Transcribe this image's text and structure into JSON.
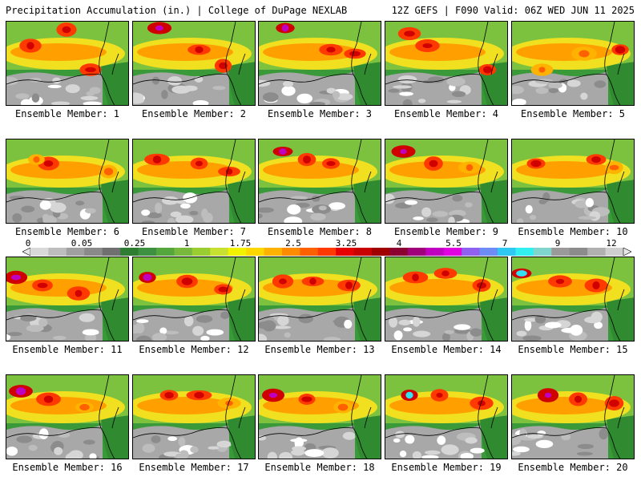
{
  "header": {
    "left": "Precipitation Accumulation (in.) | College of DuPage NEXLAB",
    "right": "12Z GEFS | F090 Valid: 06Z WED JUN 11 2025"
  },
  "colorbar": {
    "labels": [
      "0",
      "0.05",
      "0.25",
      "1",
      "1.75",
      "2.5",
      "3.25",
      "4",
      "5.5",
      "7",
      "9",
      "12"
    ],
    "colors": [
      "#d9d9d9",
      "#bdbdbd",
      "#a0a0a0",
      "#8a8a8a",
      "#707070",
      "#2e7d32",
      "#3d9140",
      "#55a63d",
      "#78b83c",
      "#9acd32",
      "#c8e030",
      "#f2f200",
      "#ffd700",
      "#ffb300",
      "#ff8c00",
      "#ff6000",
      "#ff3a00",
      "#e60000",
      "#c80000",
      "#a00000",
      "#8b0030",
      "#a0007a",
      "#c000c0",
      "#e000e0",
      "#9060f0",
      "#6d8cf5",
      "#2ec8f0",
      "#33f0f0",
      "#80d6cc",
      "#9a9a9a",
      "#8c8c8c",
      "#b0b0b0",
      "#cfcfcf"
    ]
  },
  "members": [
    {
      "label": "Ensemble Member: 1"
    },
    {
      "label": "Ensemble Member: 2"
    },
    {
      "label": "Ensemble Member: 3"
    },
    {
      "label": "Ensemble Member: 4"
    },
    {
      "label": "Ensemble Member: 5"
    },
    {
      "label": "Ensemble Member: 6"
    },
    {
      "label": "Ensemble Member: 7"
    },
    {
      "label": "Ensemble Member: 8"
    },
    {
      "label": "Ensemble Member: 9"
    },
    {
      "label": "Ensemble Member: 10"
    },
    {
      "label": "Ensemble Member: 11"
    },
    {
      "label": "Ensemble Member: 12"
    },
    {
      "label": "Ensemble Member: 13"
    },
    {
      "label": "Ensemble Member: 14"
    },
    {
      "label": "Ensemble Member: 15"
    },
    {
      "label": "Ensemble Member: 16"
    },
    {
      "label": "Ensemble Member: 17"
    },
    {
      "label": "Ensemble Member: 18"
    },
    {
      "label": "Ensemble Member: 19"
    },
    {
      "label": "Ensemble Member: 20"
    }
  ]
}
